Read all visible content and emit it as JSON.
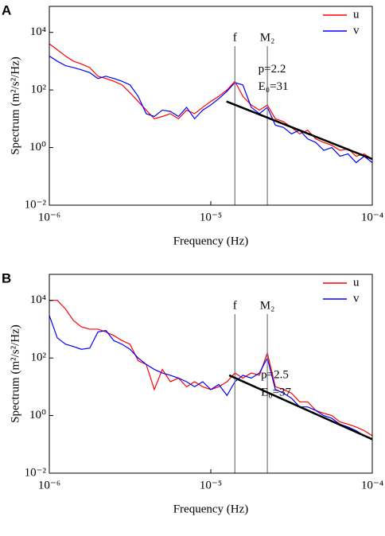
{
  "chart_data": [
    {
      "type": "line",
      "panel_label": "A",
      "xlabel": "Frequency (Hz)",
      "ylabel": "Spectrum (m²/s²/Hz)",
      "log_x": true,
      "log_y": true,
      "legend": "northeast",
      "xlim": [
        1e-06,
        0.0001
      ],
      "ylim": [
        0.01,
        80000
      ],
      "xticks": [
        {
          "value": 1e-06,
          "label": "10⁻⁶"
        },
        {
          "value": 1e-05,
          "label": "10⁻⁵"
        },
        {
          "value": 0.0001,
          "label": "10⁻⁴"
        }
      ],
      "yticks": [
        {
          "value": 0.01,
          "label": "10⁻²"
        },
        {
          "value": 1,
          "label": "10⁰"
        },
        {
          "value": 100,
          "label": "10²"
        },
        {
          "value": 10000,
          "label": "10⁴"
        }
      ],
      "x": [
        1e-06,
        1.12e-06,
        1.26e-06,
        1.41e-06,
        1.58e-06,
        1.78e-06,
        2e-06,
        2.24e-06,
        2.51e-06,
        2.82e-06,
        3.16e-06,
        3.55e-06,
        3.98e-06,
        4.47e-06,
        5.01e-06,
        5.62e-06,
        6.31e-06,
        7.08e-06,
        7.94e-06,
        8.91e-06,
        1e-05,
        1.12e-05,
        1.26e-05,
        1.41e-05,
        1.58e-05,
        1.78e-05,
        2e-05,
        2.24e-05,
        2.51e-05,
        2.82e-05,
        3.16e-05,
        3.55e-05,
        3.98e-05,
        4.47e-05,
        5.01e-05,
        5.62e-05,
        6.31e-05,
        7.08e-05,
        7.94e-05,
        8.91e-05,
        0.0001
      ],
      "series": [
        {
          "name": "u",
          "color": "#ff0000",
          "values": [
            4000,
            2500,
            1500,
            1000,
            800,
            600,
            300,
            250,
            200,
            150,
            80,
            40,
            20,
            10,
            12,
            15,
            10,
            20,
            15,
            25,
            40,
            60,
            100,
            200,
            60,
            30,
            20,
            30,
            10,
            8,
            5,
            3,
            4,
            2,
            1.5,
            1.2,
            0.8,
            0.9,
            0.5,
            0.6,
            0.4
          ]
        },
        {
          "name": "v",
          "color": "#0000ff",
          "values": [
            1500,
            1000,
            700,
            600,
            500,
            400,
            250,
            300,
            250,
            200,
            150,
            60,
            15,
            12,
            20,
            18,
            12,
            25,
            10,
            20,
            30,
            50,
            90,
            180,
            150,
            25,
            15,
            25,
            6,
            5,
            3,
            4,
            2,
            1.5,
            0.8,
            1,
            0.5,
            0.6,
            0.3,
            0.5,
            0.3
          ]
        }
      ],
      "vlines": [
        {
          "x": 1.41e-05,
          "label": "f"
        },
        {
          "x": 2.24e-05,
          "label": "M₂"
        }
      ],
      "fit": {
        "x": [
          1.25e-05,
          0.0001
        ],
        "values": [
          40,
          0.4
        ],
        "color": "#000000",
        "labels": [
          "p=2.2",
          "E₀=31"
        ]
      }
    },
    {
      "type": "line",
      "panel_label": "B",
      "xlabel": "Frequency (Hz)",
      "ylabel": "Spectrum (m²/s²/Hz)",
      "log_x": true,
      "log_y": true,
      "legend": "northeast",
      "xlim": [
        1e-06,
        0.0001
      ],
      "ylim": [
        0.01,
        80000
      ],
      "xticks": [
        {
          "value": 1e-06,
          "label": "10⁻⁶"
        },
        {
          "value": 1e-05,
          "label": "10⁻⁵"
        },
        {
          "value": 0.0001,
          "label": "10⁻⁴"
        }
      ],
      "yticks": [
        {
          "value": 0.01,
          "label": "10⁻²"
        },
        {
          "value": 1,
          "label": "10⁰"
        },
        {
          "value": 100,
          "label": "10²"
        },
        {
          "value": 10000,
          "label": "10⁴"
        }
      ],
      "x": [
        1e-06,
        1.12e-06,
        1.26e-06,
        1.41e-06,
        1.58e-06,
        1.78e-06,
        2e-06,
        2.24e-06,
        2.51e-06,
        2.82e-06,
        3.16e-06,
        3.55e-06,
        3.98e-06,
        4.47e-06,
        5.01e-06,
        5.62e-06,
        6.31e-06,
        7.08e-06,
        7.94e-06,
        8.91e-06,
        1e-05,
        1.12e-05,
        1.26e-05,
        1.41e-05,
        1.58e-05,
        1.78e-05,
        2e-05,
        2.24e-05,
        2.51e-05,
        2.82e-05,
        3.16e-05,
        3.55e-05,
        3.98e-05,
        4.47e-05,
        5.01e-05,
        5.62e-05,
        6.31e-05,
        7.08e-05,
        7.94e-05,
        8.91e-05,
        0.0001
      ],
      "series": [
        {
          "name": "u",
          "color": "#ff0000",
          "values": [
            10000,
            10000,
            5000,
            2000,
            1200,
            1000,
            1000,
            800,
            600,
            400,
            300,
            80,
            60,
            8,
            40,
            15,
            20,
            10,
            15,
            10,
            8,
            10,
            15,
            30,
            20,
            30,
            25,
            150,
            10,
            8,
            6,
            3,
            3,
            1.5,
            1.2,
            1,
            0.6,
            0.5,
            0.4,
            0.3,
            0.2
          ]
        },
        {
          "name": "v",
          "color": "#0000ff",
          "values": [
            3000,
            500,
            300,
            250,
            200,
            220,
            800,
            900,
            400,
            300,
            200,
            100,
            60,
            40,
            30,
            25,
            20,
            15,
            10,
            15,
            8,
            12,
            5,
            15,
            25,
            20,
            30,
            100,
            8,
            6,
            4,
            2,
            2,
            1.5,
            1,
            0.8,
            0.5,
            0.4,
            0.3,
            0.2,
            0.15
          ]
        }
      ],
      "vlines": [
        {
          "x": 1.41e-05,
          "label": "f"
        },
        {
          "x": 2.24e-05,
          "label": "M₂"
        }
      ],
      "fit": {
        "x": [
          1.3e-05,
          0.0001
        ],
        "values": [
          25,
          0.15
        ],
        "color": "#000000",
        "labels": [
          "p=2.5",
          "E₀=37"
        ]
      }
    }
  ]
}
